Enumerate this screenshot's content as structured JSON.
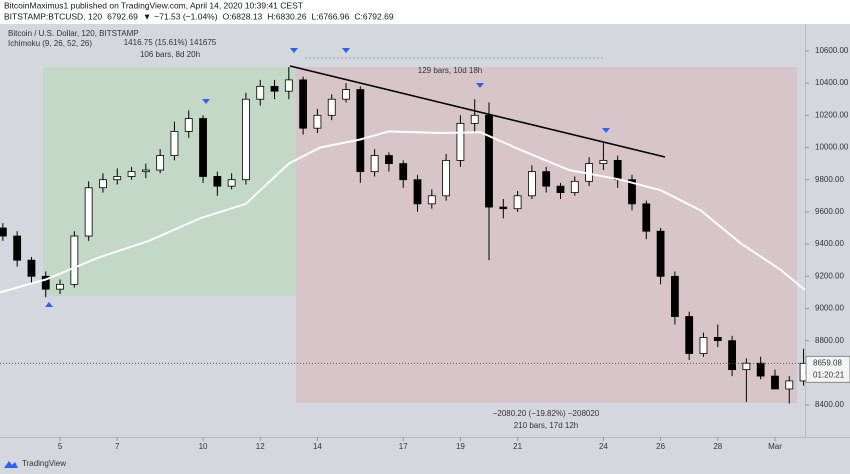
{
  "chart_data": {
    "type": "candlestick",
    "title": "BitcoinMaximus1 published on TradingView.com, April 14, 2020 10:39:41 CEST",
    "symbol_line": [
      "BITSTAMP:BTCUSD, 120",
      "6792.69",
      "▼",
      "−71.53 (−1.04%)",
      "O:6828.13",
      "H:6830.26",
      "L:6766.96",
      "C:6792.69"
    ],
    "annotations": [
      "1416.75 (15.61%) 141675",
      "106 bars, 8d 20h",
      "129 bars, 10d 18h",
      "−2080.20 (−19.82%) −208020",
      "210 bars, 17d 12h"
    ],
    "last_price": 8659.08,
    "countdown": "01:20:21",
    "footer": "TradingView",
    "up_color": "#ffffff",
    "down_color": "#000000",
    "xlim": [
      2.9,
      31.05
    ],
    "xticks": [
      5,
      7,
      10,
      12,
      14,
      17,
      19,
      21,
      24,
      26,
      28,
      {
        "value": 30,
        "label": "Mar"
      }
    ],
    "ylim": [
      8214,
      10730
    ],
    "yticks": [
      {
        "value": 8400,
        "label": "8400.00"
      },
      {
        "value": 8600,
        "label": "8600.00"
      },
      {
        "value": 8800,
        "label": "8800.00"
      },
      {
        "value": 9000,
        "label": "9000.00"
      },
      {
        "value": 9200,
        "label": "9200.00"
      },
      {
        "value": 9400,
        "label": "9400.00"
      },
      {
        "value": 9600,
        "label": "9600.00"
      },
      {
        "value": 9800,
        "label": "9800.00"
      },
      {
        "value": 10000,
        "label": "10000.00"
      },
      {
        "value": 10200,
        "label": "10200.00"
      },
      {
        "value": 10400,
        "label": "10400.00"
      },
      {
        "value": 10600,
        "label": "10600.00"
      }
    ],
    "series": [
      {
        "name": "Bitcoin / U.S. Dollar, 120, BITSTAMP",
        "x": [
          3,
          3.5,
          4,
          4.5,
          5,
          5.5,
          6,
          6.5,
          7,
          7.5,
          8,
          8.5,
          9,
          9.5,
          10,
          10.5,
          11,
          11.5,
          12,
          12.5,
          13,
          13.5,
          14,
          14.5,
          15,
          15.5,
          16,
          16.5,
          17,
          17.5,
          18,
          18.5,
          19,
          19.5,
          20,
          20.5,
          21,
          21.5,
          22,
          22.5,
          23,
          23.5,
          24,
          24.5,
          25,
          25.5,
          26,
          26.5,
          27,
          27.5,
          28,
          28.5,
          29,
          29.5,
          30,
          30.5,
          31
        ],
        "open": [
          9500,
          9450,
          9300,
          9200,
          9120,
          9150,
          9450,
          9750,
          9800,
          9820,
          9850,
          9860,
          9950,
          10100,
          10180,
          9820,
          9760,
          9800,
          10300,
          10380,
          10350,
          10420,
          10120,
          10200,
          10300,
          10360,
          9850,
          9950,
          9900,
          9800,
          9650,
          9700,
          9920,
          10150,
          10200,
          9630,
          9620,
          9700,
          9850,
          9760,
          9720,
          9790,
          9900,
          9920,
          9800,
          9650,
          9480,
          9200,
          8950,
          8720,
          8820,
          8800,
          8620,
          8660,
          8580,
          8500,
          8550
        ],
        "high": [
          9530,
          9480,
          9320,
          9230,
          9180,
          9480,
          9790,
          9840,
          9870,
          9880,
          9900,
          9990,
          10160,
          10230,
          10200,
          9850,
          9840,
          10340,
          10420,
          10420,
          10500,
          10440,
          10240,
          10330,
          10400,
          10380,
          9990,
          9970,
          9920,
          9830,
          9740,
          9960,
          10200,
          10300,
          10280,
          9680,
          9730,
          9890,
          9880,
          9780,
          9820,
          9940,
          10030,
          9950,
          9830,
          9670,
          9500,
          9230,
          8980,
          8850,
          8900,
          8830,
          8690,
          8700,
          8620,
          8580,
          8750
        ],
        "low": [
          9420,
          9260,
          9150,
          9070,
          9090,
          9130,
          9420,
          9720,
          9770,
          9800,
          9810,
          9840,
          9920,
          10060,
          9780,
          9700,
          9740,
          9770,
          10260,
          10300,
          10300,
          10080,
          10090,
          10170,
          10280,
          9780,
          9820,
          9850,
          9750,
          9600,
          9620,
          9670,
          9880,
          10100,
          9300,
          9560,
          9600,
          9680,
          9720,
          9680,
          9700,
          9760,
          9860,
          9750,
          9610,
          9430,
          9150,
          8900,
          8680,
          8700,
          8760,
          8580,
          8420,
          8560,
          8500,
          8410,
          8520
        ],
        "close": [
          9450,
          9300,
          9200,
          9120,
          9150,
          9450,
          9750,
          9800,
          9820,
          9850,
          9860,
          9950,
          10100,
          10180,
          9820,
          9760,
          9800,
          10300,
          10380,
          10350,
          10420,
          10120,
          10200,
          10300,
          10360,
          9850,
          9950,
          9900,
          9800,
          9650,
          9700,
          9920,
          10150,
          10200,
          9630,
          9620,
          9700,
          9850,
          9760,
          9720,
          9790,
          9900,
          9920,
          9800,
          9650,
          9480,
          9200,
          8950,
          8720,
          8820,
          8800,
          8620,
          8660,
          8580,
          8500,
          8550,
          8659
        ]
      },
      {
        "name": "Ichimoku (9, 26, 52, 26)",
        "color": "#ffffff",
        "x": [
          2.9,
          4.5,
          6.4,
          8.1,
          9.9,
          11.5,
          13.0,
          14.1,
          15.5,
          16.5,
          18.3,
          19.7,
          21.1,
          22.8,
          24.6,
          26.0,
          27.4,
          28.8,
          30.2,
          31.05
        ],
        "values": [
          9100,
          9180,
          9320,
          9420,
          9560,
          9650,
          9900,
          10000,
          10050,
          10100,
          10090,
          10095,
          9985,
          9860,
          9800,
          9735,
          9610,
          9405,
          9240,
          9115
        ]
      }
    ]
  }
}
